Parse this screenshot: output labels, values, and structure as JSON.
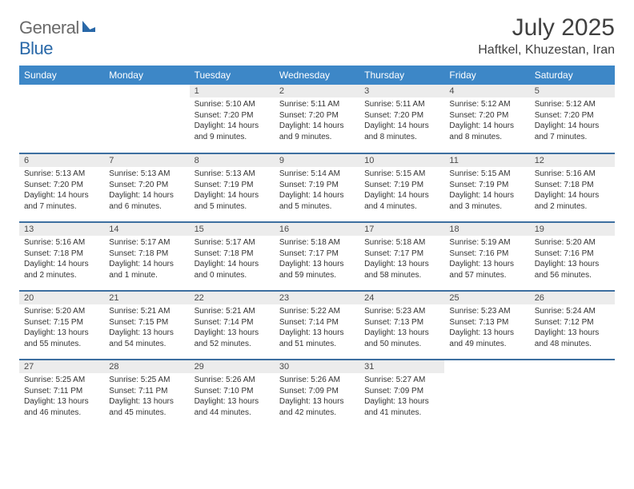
{
  "brand": {
    "part1": "General",
    "part2": "Blue"
  },
  "title": "July 2025",
  "location": "Haftkel, Khuzestan, Iran",
  "colors": {
    "header_bg": "#3d87c7",
    "row_divider": "#3d6fa0",
    "daynum_bg": "#ececec",
    "logo_gray": "#6a6a6a",
    "logo_blue": "#2968a8",
    "text": "#333333"
  },
  "weekdays": [
    "Sunday",
    "Monday",
    "Tuesday",
    "Wednesday",
    "Thursday",
    "Friday",
    "Saturday"
  ],
  "weeks": [
    [
      null,
      null,
      {
        "n": "1",
        "sr": "5:10 AM",
        "ss": "7:20 PM",
        "dl": "14 hours and 9 minutes."
      },
      {
        "n": "2",
        "sr": "5:11 AM",
        "ss": "7:20 PM",
        "dl": "14 hours and 9 minutes."
      },
      {
        "n": "3",
        "sr": "5:11 AM",
        "ss": "7:20 PM",
        "dl": "14 hours and 8 minutes."
      },
      {
        "n": "4",
        "sr": "5:12 AM",
        "ss": "7:20 PM",
        "dl": "14 hours and 8 minutes."
      },
      {
        "n": "5",
        "sr": "5:12 AM",
        "ss": "7:20 PM",
        "dl": "14 hours and 7 minutes."
      }
    ],
    [
      {
        "n": "6",
        "sr": "5:13 AM",
        "ss": "7:20 PM",
        "dl": "14 hours and 7 minutes."
      },
      {
        "n": "7",
        "sr": "5:13 AM",
        "ss": "7:20 PM",
        "dl": "14 hours and 6 minutes."
      },
      {
        "n": "8",
        "sr": "5:13 AM",
        "ss": "7:19 PM",
        "dl": "14 hours and 5 minutes."
      },
      {
        "n": "9",
        "sr": "5:14 AM",
        "ss": "7:19 PM",
        "dl": "14 hours and 5 minutes."
      },
      {
        "n": "10",
        "sr": "5:15 AM",
        "ss": "7:19 PM",
        "dl": "14 hours and 4 minutes."
      },
      {
        "n": "11",
        "sr": "5:15 AM",
        "ss": "7:19 PM",
        "dl": "14 hours and 3 minutes."
      },
      {
        "n": "12",
        "sr": "5:16 AM",
        "ss": "7:18 PM",
        "dl": "14 hours and 2 minutes."
      }
    ],
    [
      {
        "n": "13",
        "sr": "5:16 AM",
        "ss": "7:18 PM",
        "dl": "14 hours and 2 minutes."
      },
      {
        "n": "14",
        "sr": "5:17 AM",
        "ss": "7:18 PM",
        "dl": "14 hours and 1 minute."
      },
      {
        "n": "15",
        "sr": "5:17 AM",
        "ss": "7:18 PM",
        "dl": "14 hours and 0 minutes."
      },
      {
        "n": "16",
        "sr": "5:18 AM",
        "ss": "7:17 PM",
        "dl": "13 hours and 59 minutes."
      },
      {
        "n": "17",
        "sr": "5:18 AM",
        "ss": "7:17 PM",
        "dl": "13 hours and 58 minutes."
      },
      {
        "n": "18",
        "sr": "5:19 AM",
        "ss": "7:16 PM",
        "dl": "13 hours and 57 minutes."
      },
      {
        "n": "19",
        "sr": "5:20 AM",
        "ss": "7:16 PM",
        "dl": "13 hours and 56 minutes."
      }
    ],
    [
      {
        "n": "20",
        "sr": "5:20 AM",
        "ss": "7:15 PM",
        "dl": "13 hours and 55 minutes."
      },
      {
        "n": "21",
        "sr": "5:21 AM",
        "ss": "7:15 PM",
        "dl": "13 hours and 54 minutes."
      },
      {
        "n": "22",
        "sr": "5:21 AM",
        "ss": "7:14 PM",
        "dl": "13 hours and 52 minutes."
      },
      {
        "n": "23",
        "sr": "5:22 AM",
        "ss": "7:14 PM",
        "dl": "13 hours and 51 minutes."
      },
      {
        "n": "24",
        "sr": "5:23 AM",
        "ss": "7:13 PM",
        "dl": "13 hours and 50 minutes."
      },
      {
        "n": "25",
        "sr": "5:23 AM",
        "ss": "7:13 PM",
        "dl": "13 hours and 49 minutes."
      },
      {
        "n": "26",
        "sr": "5:24 AM",
        "ss": "7:12 PM",
        "dl": "13 hours and 48 minutes."
      }
    ],
    [
      {
        "n": "27",
        "sr": "5:25 AM",
        "ss": "7:11 PM",
        "dl": "13 hours and 46 minutes."
      },
      {
        "n": "28",
        "sr": "5:25 AM",
        "ss": "7:11 PM",
        "dl": "13 hours and 45 minutes."
      },
      {
        "n": "29",
        "sr": "5:26 AM",
        "ss": "7:10 PM",
        "dl": "13 hours and 44 minutes."
      },
      {
        "n": "30",
        "sr": "5:26 AM",
        "ss": "7:09 PM",
        "dl": "13 hours and 42 minutes."
      },
      {
        "n": "31",
        "sr": "5:27 AM",
        "ss": "7:09 PM",
        "dl": "13 hours and 41 minutes."
      },
      null,
      null
    ]
  ],
  "labels": {
    "sunrise": "Sunrise:",
    "sunset": "Sunset:",
    "daylight": "Daylight:"
  }
}
